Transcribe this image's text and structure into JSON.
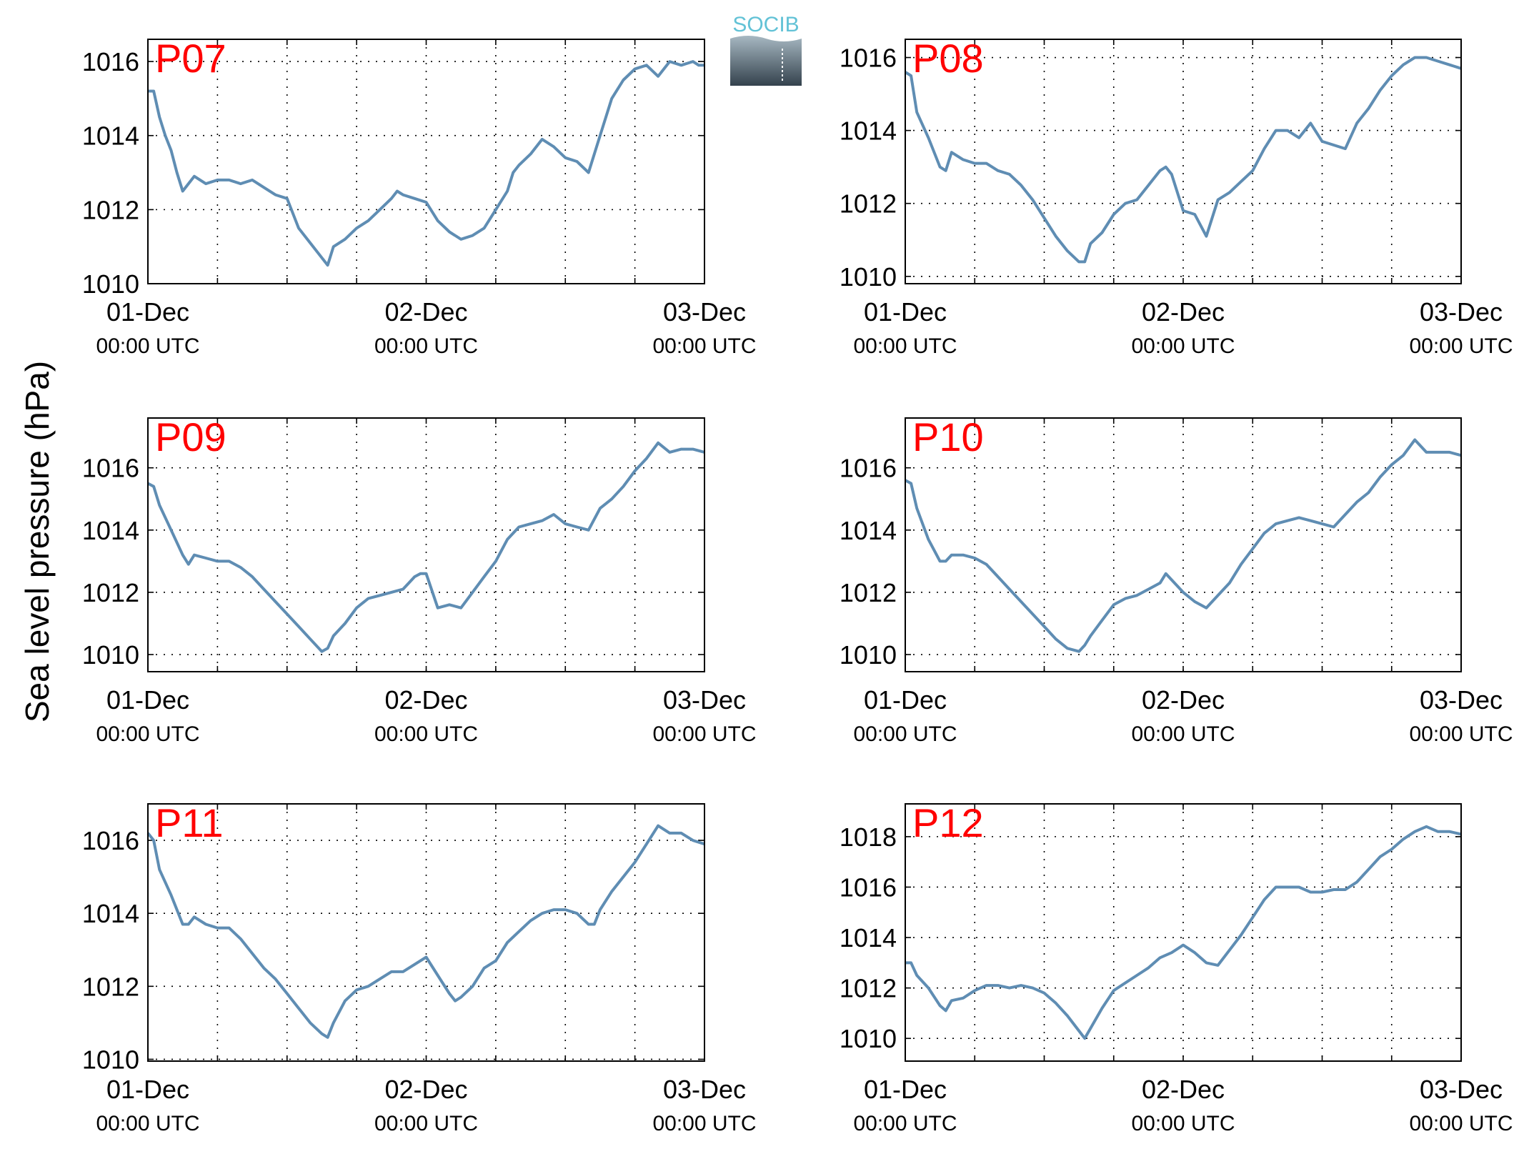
{
  "figure": {
    "ylabel": "Sea level pressure (hPa)",
    "logo_text": "SOCIB",
    "series_color": "#5f8db3",
    "label_color": "#ff0000"
  },
  "chart_data": [
    {
      "type": "line",
      "title": "P07",
      "x_ticks": [
        "01-Dec 00:00 UTC",
        "02-Dec 00:00 UTC",
        "03-Dec 00:00 UTC"
      ],
      "x_range_hours": [
        0,
        48
      ],
      "ylim": [
        1010,
        1016.6
      ],
      "yticks": [
        1010,
        1012,
        1014,
        1016
      ],
      "grid": true,
      "series": [
        {
          "x_hours": [
            0,
            0.5,
            1,
            1.5,
            2,
            2.5,
            3,
            4,
            5,
            6,
            7,
            8,
            9,
            10,
            11,
            12,
            13,
            14,
            15,
            15.5,
            16,
            17,
            18,
            19,
            20,
            21,
            21.5,
            22,
            23,
            24,
            25,
            26,
            27,
            28,
            29,
            30,
            31,
            31.5,
            32,
            33,
            34,
            35,
            36,
            37,
            38,
            39,
            40,
            41,
            42,
            43,
            44,
            45,
            46,
            47,
            47.5,
            48
          ],
          "y": [
            1015.2,
            1015.2,
            1014.5,
            1014,
            1013.6,
            1013,
            1012.5,
            1012.9,
            1012.7,
            1012.8,
            1012.8,
            1012.7,
            1012.8,
            1012.6,
            1012.4,
            1012.3,
            1011.5,
            1011.1,
            1010.7,
            1010.5,
            1011,
            1011.2,
            1011.5,
            1011.7,
            1012,
            1012.3,
            1012.5,
            1012.4,
            1012.3,
            1012.2,
            1011.7,
            1011.4,
            1011.2,
            1011.3,
            1011.5,
            1012,
            1012.5,
            1013,
            1013.2,
            1013.5,
            1013.9,
            1013.7,
            1013.4,
            1013.3,
            1013,
            1014,
            1015,
            1015.5,
            1015.8,
            1015.9,
            1015.6,
            1016,
            1015.9,
            1016,
            1015.9,
            1015.9
          ]
        }
      ]
    },
    {
      "type": "line",
      "title": "P08",
      "x_ticks": [
        "01-Dec 00:00 UTC",
        "02-Dec 00:00 UTC",
        "03-Dec 00:00 UTC"
      ],
      "x_range_hours": [
        0,
        48
      ],
      "ylim": [
        1009.8,
        1016.5
      ],
      "yticks": [
        1010,
        1012,
        1014,
        1016
      ],
      "grid": true,
      "series": [
        {
          "x_hours": [
            0,
            0.5,
            1,
            2,
            3,
            3.5,
            4,
            5,
            6,
            7,
            8,
            9,
            10,
            11,
            12,
            13,
            14,
            15,
            15.5,
            16,
            17,
            18,
            19,
            20,
            21,
            22,
            22.5,
            23,
            24,
            25,
            26,
            27,
            28,
            29,
            30,
            31,
            32,
            33,
            34,
            35,
            36,
            37,
            38,
            39,
            40,
            41,
            42,
            43,
            44,
            45,
            46,
            47,
            48
          ],
          "y": [
            1015.6,
            1015.5,
            1014.5,
            1013.8,
            1013,
            1012.9,
            1013.4,
            1013.2,
            1013.1,
            1013.1,
            1012.9,
            1012.8,
            1012.5,
            1012.1,
            1011.6,
            1011.1,
            1010.7,
            1010.4,
            1010.4,
            1010.9,
            1011.2,
            1011.7,
            1012,
            1012.1,
            1012.5,
            1012.9,
            1013,
            1012.8,
            1011.8,
            1011.7,
            1011.1,
            1012.1,
            1012.3,
            1012.6,
            1012.9,
            1013.5,
            1014,
            1014,
            1013.8,
            1014.2,
            1013.7,
            1013.6,
            1013.5,
            1014.2,
            1014.6,
            1015.1,
            1015.5,
            1015.8,
            1016,
            1016,
            1015.9,
            1015.8,
            1015.7
          ]
        }
      ]
    },
    {
      "type": "line",
      "title": "P09",
      "x_ticks": [
        "01-Dec 00:00 UTC",
        "02-Dec 00:00 UTC",
        "03-Dec 00:00 UTC"
      ],
      "x_range_hours": [
        0,
        48
      ],
      "ylim": [
        1009.45,
        1017.6
      ],
      "yticks": [
        1010,
        1012,
        1014,
        1016
      ],
      "grid": true,
      "series": [
        {
          "x_hours": [
            0,
            0.5,
            1,
            2,
            3,
            3.5,
            4,
            5,
            6,
            7,
            8,
            9,
            10,
            11,
            12,
            13,
            14,
            15,
            15.5,
            16,
            17,
            18,
            19,
            20,
            21,
            22,
            22.5,
            23,
            23.5,
            24,
            25,
            26,
            27,
            28,
            29,
            30,
            31,
            32,
            33,
            34,
            35,
            36,
            37,
            38,
            39,
            40,
            41,
            42,
            43,
            44,
            45,
            46,
            47,
            48
          ],
          "y": [
            1015.5,
            1015.4,
            1014.8,
            1014,
            1013.2,
            1012.9,
            1013.2,
            1013.1,
            1013,
            1013,
            1012.8,
            1012.5,
            1012.1,
            1011.7,
            1011.3,
            1010.9,
            1010.5,
            1010.1,
            1010.2,
            1010.6,
            1011,
            1011.5,
            1011.8,
            1011.9,
            1012,
            1012.1,
            1012.3,
            1012.5,
            1012.6,
            1012.6,
            1011.5,
            1011.6,
            1011.5,
            1012,
            1012.5,
            1013,
            1013.7,
            1014.1,
            1014.2,
            1014.3,
            1014.5,
            1014.2,
            1014.1,
            1014,
            1014.7,
            1015,
            1015.4,
            1015.9,
            1016.3,
            1016.8,
            1016.5,
            1016.6,
            1016.6,
            1016.5
          ]
        }
      ]
    },
    {
      "type": "line",
      "title": "P10",
      "x_ticks": [
        "01-Dec 00:00 UTC",
        "02-Dec 00:00 UTC",
        "03-Dec 00:00 UTC"
      ],
      "x_range_hours": [
        0,
        48
      ],
      "ylim": [
        1009.45,
        1017.6
      ],
      "yticks": [
        1010,
        1012,
        1014,
        1016
      ],
      "grid": true,
      "series": [
        {
          "x_hours": [
            0,
            0.5,
            1,
            2,
            3,
            3.5,
            4,
            5,
            6,
            7,
            8,
            9,
            10,
            11,
            12,
            13,
            14,
            15,
            15.5,
            16,
            17,
            18,
            19,
            20,
            21,
            22,
            22.5,
            23,
            24,
            25,
            26,
            27,
            28,
            29,
            30,
            31,
            32,
            33,
            34,
            35,
            36,
            37,
            38,
            39,
            40,
            41,
            42,
            43,
            44,
            45,
            46,
            47,
            48
          ],
          "y": [
            1015.6,
            1015.5,
            1014.7,
            1013.7,
            1013,
            1013,
            1013.2,
            1013.2,
            1013.1,
            1012.9,
            1012.5,
            1012.1,
            1011.7,
            1011.3,
            1010.9,
            1010.5,
            1010.2,
            1010.1,
            1010.3,
            1010.6,
            1011.1,
            1011.6,
            1011.8,
            1011.9,
            1012.1,
            1012.3,
            1012.6,
            1012.4,
            1012,
            1011.7,
            1011.5,
            1011.9,
            1012.3,
            1012.9,
            1013.4,
            1013.9,
            1014.2,
            1014.3,
            1014.4,
            1014.3,
            1014.2,
            1014.1,
            1014.5,
            1014.9,
            1015.2,
            1015.7,
            1016.1,
            1016.4,
            1016.9,
            1016.5,
            1016.5,
            1016.5,
            1016.4
          ]
        }
      ]
    },
    {
      "type": "line",
      "title": "P11",
      "x_ticks": [
        "01-Dec 00:00 UTC",
        "02-Dec 00:00 UTC",
        "03-Dec 00:00 UTC"
      ],
      "x_range_hours": [
        0,
        48
      ],
      "ylim": [
        1009.95,
        1017
      ],
      "yticks": [
        1010,
        1012,
        1014,
        1016
      ],
      "grid": true,
      "series": [
        {
          "x_hours": [
            0,
            0.5,
            1,
            2,
            3,
            3.5,
            4,
            5,
            6,
            7,
            8,
            9,
            10,
            11,
            12,
            13,
            14,
            15,
            15.5,
            16,
            17,
            18,
            19,
            20,
            21,
            22,
            23,
            24,
            25,
            26,
            26.5,
            27,
            28,
            29,
            30,
            31,
            32,
            33,
            34,
            35,
            36,
            37,
            38,
            38.5,
            39,
            40,
            41,
            42,
            43,
            44,
            45,
            46,
            47,
            48
          ],
          "y": [
            1016.2,
            1016,
            1015.2,
            1014.5,
            1013.7,
            1013.7,
            1013.9,
            1013.7,
            1013.6,
            1013.6,
            1013.3,
            1012.9,
            1012.5,
            1012.2,
            1011.8,
            1011.4,
            1011,
            1010.7,
            1010.6,
            1011,
            1011.6,
            1011.9,
            1012,
            1012.2,
            1012.4,
            1012.4,
            1012.6,
            1012.8,
            1012.3,
            1011.8,
            1011.6,
            1011.7,
            1012,
            1012.5,
            1012.7,
            1013.2,
            1013.5,
            1013.8,
            1014,
            1014.1,
            1014.1,
            1014,
            1013.7,
            1013.7,
            1014.1,
            1014.6,
            1015,
            1015.4,
            1015.9,
            1016.4,
            1016.2,
            1016.2,
            1016,
            1015.9
          ]
        }
      ]
    },
    {
      "type": "line",
      "title": "P12",
      "x_ticks": [
        "01-Dec 00:00 UTC",
        "02-Dec 00:00 UTC",
        "03-Dec 00:00 UTC"
      ],
      "x_range_hours": [
        0,
        48
      ],
      "ylim": [
        1009.1,
        1019.3
      ],
      "yticks": [
        1010,
        1012,
        1014,
        1016,
        1018
      ],
      "grid": true,
      "series": [
        {
          "x_hours": [
            0,
            0.5,
            1,
            2,
            3,
            3.5,
            4,
            5,
            6,
            7,
            8,
            9,
            10,
            11,
            12,
            13,
            14,
            15,
            15.5,
            16,
            17,
            18,
            19,
            20,
            21,
            22,
            23,
            24,
            25,
            26,
            27,
            28,
            29,
            30,
            31,
            32,
            33,
            34,
            35,
            36,
            37,
            38,
            39,
            40,
            41,
            42,
            43,
            44,
            45,
            46,
            47,
            48
          ],
          "y": [
            1013,
            1013,
            1012.5,
            1012,
            1011.3,
            1011.1,
            1011.5,
            1011.6,
            1011.9,
            1012.1,
            1012.1,
            1012,
            1012.1,
            1012,
            1011.8,
            1011.4,
            1010.9,
            1010.3,
            1010,
            1010.4,
            1011.2,
            1011.9,
            1012.2,
            1012.5,
            1012.8,
            1013.2,
            1013.4,
            1013.7,
            1013.4,
            1013,
            1012.9,
            1013.5,
            1014.1,
            1014.8,
            1015.5,
            1016,
            1016,
            1016,
            1015.8,
            1015.8,
            1015.9,
            1015.9,
            1016.2,
            1016.7,
            1017.2,
            1017.5,
            1017.9,
            1018.2,
            1018.4,
            1018.2,
            1018.2,
            1018.1
          ]
        }
      ]
    }
  ]
}
